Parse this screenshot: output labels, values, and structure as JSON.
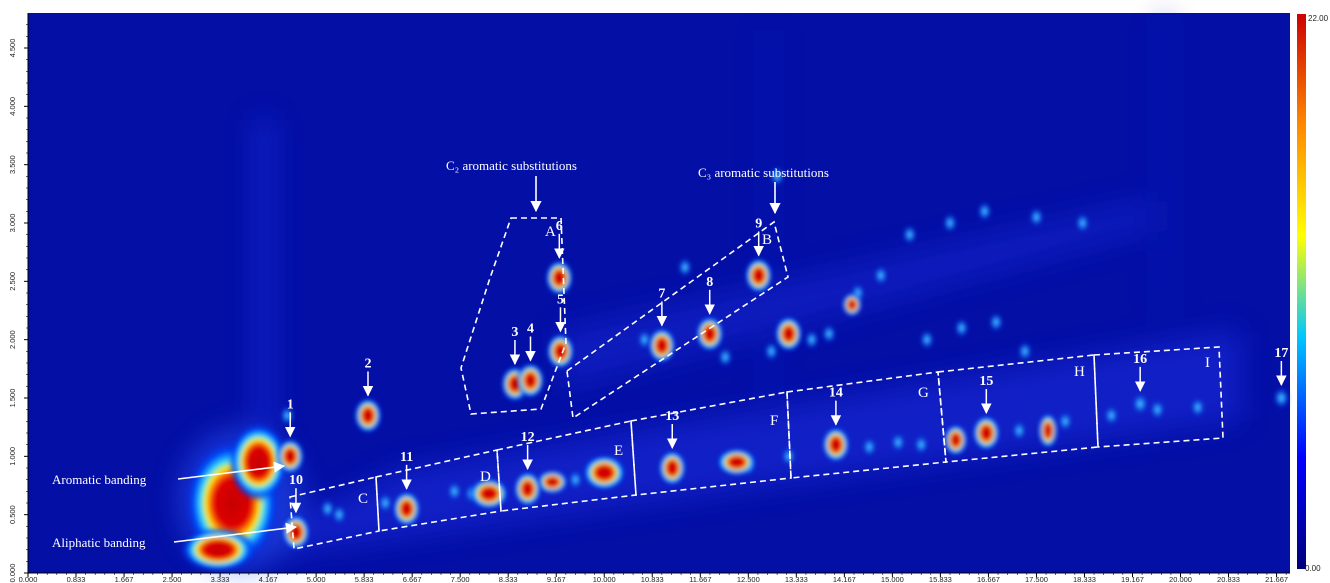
{
  "chart_data": {
    "type": "heatmap",
    "title": "",
    "xlabel": "",
    "ylabel": "",
    "x_ticks": [
      "0.000",
      "0.833",
      "1.667",
      "2.500",
      "3.333",
      "4.167",
      "5.000",
      "5.833",
      "6.667",
      "7.500",
      "8.333",
      "9.167",
      "10.000",
      "10.833",
      "11.667",
      "12.500",
      "13.333",
      "14.167",
      "15.000",
      "15.833",
      "16.667",
      "17.500",
      "18.333",
      "19.167",
      "20.000",
      "20.833",
      "21.667"
    ],
    "y_ticks": [
      "0.000",
      "0.500",
      "1.000",
      "1.500",
      "2.000",
      "2.500",
      "3.000",
      "3.500",
      "4.000",
      "4.500"
    ],
    "xlim": [
      0,
      21.9
    ],
    "ylim": [
      0,
      4.8
    ],
    "colorbar": {
      "min_label": "0.00",
      "max_label": "22.00",
      "min": 0,
      "max": 22
    },
    "colors": [
      "#00007a",
      "#0000ff",
      "#00c8ff",
      "#ffff00",
      "#ff8800",
      "#cc0000"
    ],
    "grid": false,
    "peaks": [
      {
        "label": "1",
        "x": 4.55,
        "y": 1.0,
        "intensity": 22
      },
      {
        "label": "2",
        "x": 5.9,
        "y": 1.35,
        "intensity": 22
      },
      {
        "label": "3",
        "x": 8.45,
        "y": 1.62,
        "intensity": 22
      },
      {
        "label": "4",
        "x": 8.72,
        "y": 1.65,
        "intensity": 22
      },
      {
        "label": "5",
        "x": 9.24,
        "y": 1.9,
        "intensity": 22
      },
      {
        "label": "6",
        "x": 9.22,
        "y": 2.53,
        "intensity": 20
      },
      {
        "label": "7",
        "x": 11.0,
        "y": 1.95,
        "intensity": 22
      },
      {
        "label": "8",
        "x": 11.83,
        "y": 2.05,
        "intensity": 22
      },
      {
        "label": "9",
        "x": 12.68,
        "y": 2.55,
        "intensity": 20
      },
      {
        "label": "10",
        "x": 4.65,
        "y": 0.35,
        "intensity": 22
      },
      {
        "label": "11",
        "x": 6.57,
        "y": 0.55,
        "intensity": 22
      },
      {
        "label": "12",
        "x": 8.67,
        "y": 0.72,
        "intensity": 22
      },
      {
        "label": "13",
        "x": 11.18,
        "y": 0.9,
        "intensity": 22
      },
      {
        "label": "14",
        "x": 14.02,
        "y": 1.1,
        "intensity": 22
      },
      {
        "label": "15",
        "x": 16.63,
        "y": 1.2,
        "intensity": 22
      },
      {
        "label": "16",
        "x": 19.3,
        "y": 1.45,
        "intensity": 6
      },
      {
        "label": "17",
        "x": 21.75,
        "y": 1.5,
        "intensity": 4
      }
    ],
    "regions": [
      "A",
      "B",
      "C",
      "D",
      "E",
      "F",
      "G",
      "H",
      "I"
    ],
    "annotations": [
      {
        "text": "C₂ aromatic substitutions"
      },
      {
        "text": "C₃ aromatic substitutions"
      },
      {
        "text": "Aromatic banding"
      },
      {
        "text": "Aliphatic banding"
      }
    ]
  }
}
